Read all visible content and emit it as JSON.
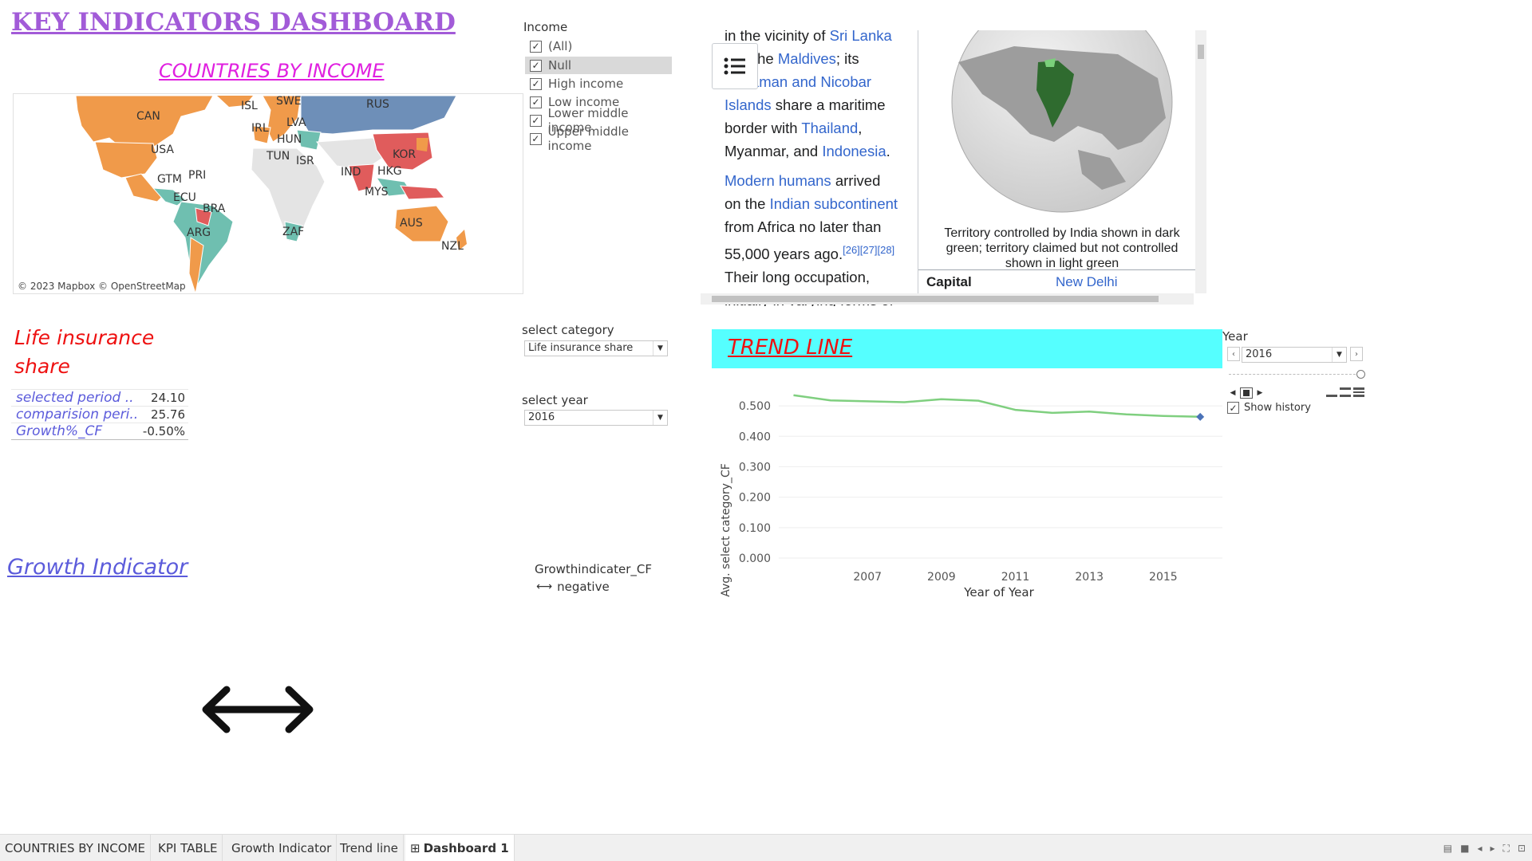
{
  "dashboard": {
    "title": "KEY INDICATORS DASHBOARD"
  },
  "map": {
    "title": "COUNTRIES BY INCOME",
    "credit": "© 2023 Mapbox © OpenStreetMap",
    "labels": [
      "CAN",
      "ISL",
      "SWE",
      "RUS",
      "IRL",
      "LVA",
      "HUN",
      "USA",
      "TUN",
      "ISR",
      "KOR",
      "IND",
      "HKG",
      "PRI",
      "GTM",
      "MYS",
      "ECU",
      "BRA",
      "AUS",
      "ARG",
      "ZAF",
      "NZL"
    ],
    "colors": {
      "high_income": "#f09a4a",
      "upper_middle": "#6fbfb0",
      "lower_middle": "#e05c5c",
      "null": "#6e8fb8",
      "no_data": "#e4e4e4"
    }
  },
  "income_filter": {
    "title": "Income",
    "items": [
      {
        "label": "(All)",
        "checked": true
      },
      {
        "label": "Null",
        "checked": true
      },
      {
        "label": "High income",
        "checked": true
      },
      {
        "label": "Low income",
        "checked": true
      },
      {
        "label": "Lower middle income",
        "checked": true
      },
      {
        "label": "Upper middle income",
        "checked": true
      }
    ]
  },
  "wiki": {
    "p1_parts": [
      "in the vicinity of ",
      "Sri Lanka",
      " and the ",
      "Maldives",
      "; its ",
      "Andaman and Nicobar Islands",
      " share a maritime border with ",
      "Thailand",
      ", Myanmar, and ",
      "Indonesia",
      "."
    ],
    "p2_parts": [
      "Modern humans",
      " arrived on the ",
      "Indian subcontinent",
      " from Africa no later than 55,000 years ago.",
      "[26][27][28]",
      " Their long occupation, initially in varying forms of"
    ],
    "caption": "Territory controlled by India shown in dark green; territory claimed but not controlled shown in light green",
    "capital_key": "Capital",
    "capital_value": "New Delhi"
  },
  "kpi": {
    "title": "Life insurance share",
    "rows": [
      {
        "label": "selected period ..",
        "value": "24.10"
      },
      {
        "label": "comparision peri..",
        "value": "25.76"
      },
      {
        "label": "Growth%_CF",
        "value": "-0.50%"
      }
    ]
  },
  "select_category": {
    "label": "select category",
    "value": "Life insurance share"
  },
  "select_year": {
    "label": "select year",
    "value": "2016"
  },
  "growth": {
    "title": "Growth Indicator",
    "legend_title": "Growthindicater_CF",
    "legend_item": "negative"
  },
  "trend": {
    "title": "TREND LINE"
  },
  "year_control": {
    "label": "Year",
    "value": "2016",
    "show_history": "Show history"
  },
  "chart_data": {
    "type": "line",
    "title": "",
    "xlabel": "Year of Year",
    "ylabel": "Avg. select category_CF",
    "x": [
      2005,
      2006,
      2007,
      2008,
      2009,
      2010,
      2011,
      2012,
      2013,
      2014,
      2015,
      2016
    ],
    "x_ticks": [
      "2007",
      "2009",
      "2011",
      "2013",
      "2015"
    ],
    "y_ticks": [
      "0.000",
      "0.100",
      "0.200",
      "0.300",
      "0.400",
      "0.500"
    ],
    "series": [
      {
        "values": [
          0.535,
          0.518,
          0.515,
          0.512,
          0.522,
          0.517,
          0.487,
          0.477,
          0.481,
          0.472,
          0.467,
          0.464
        ],
        "color": "#7fcf7f"
      }
    ],
    "ylim": [
      0,
      0.55
    ],
    "xlim": [
      2004.6,
      2016.6
    ],
    "highlight_point": {
      "x": 2016,
      "y": 0.464,
      "color": "#4a72b8"
    }
  },
  "tabs": [
    {
      "label": "COUNTRIES BY INCOME"
    },
    {
      "label": "KPI TABLE"
    },
    {
      "label": "Growth Indicator"
    },
    {
      "label": "Trend line"
    },
    {
      "label": "Dashboard 1"
    }
  ]
}
